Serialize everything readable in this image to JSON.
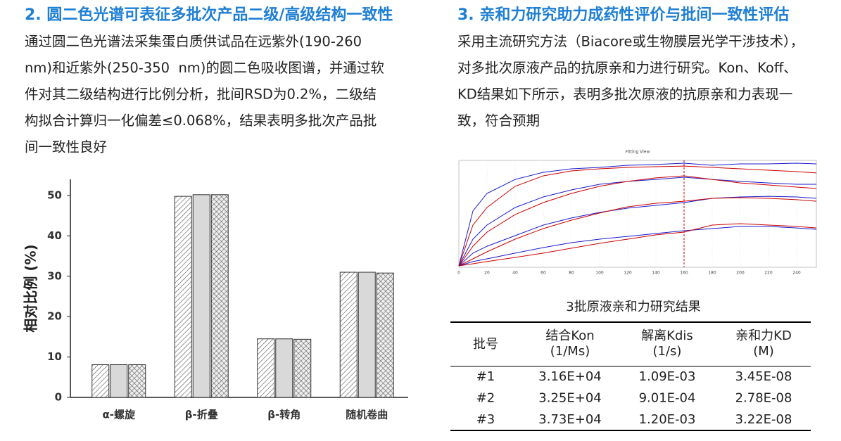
{
  "left": {
    "heading": "2. 圆二色光谱可表征多批次产品二级/高级结构一致性",
    "paragraph": [
      "通过圆二色光谱法采集蛋白质供试品在远紫外(190-260",
      "nm)和近紫外(250-350  nm)的圆二色吸收图谱，并通过软",
      "件对其二级结构进行比例分析，批间RSD为0.2%，二级结",
      "构拟合计算归一化偏差≤0.068%，结果表明多批次产品批",
      "间一致性良好"
    ]
  },
  "right": {
    "heading": "3. 亲和力研究助力成药性评价与批间一致性评估",
    "paragraph": [
      "采用主流研究方法（Biacore或生物膜层光学干涉技术），",
      "对多批次原液产品的抗原亲和力进行研究。Kon、Koff、",
      "KD结果如下所示，表明多批次原液的抗原亲和力表现一",
      "致，符合预期"
    ]
  },
  "chart_data": [
    {
      "type": "bar",
      "ylabel": "相对比例 (%)",
      "categories": [
        "α-螺旋",
        "β-折叠",
        "β-转角",
        "随机卷曲"
      ],
      "series": [
        {
          "color": "#ffffff",
          "pattern": "diagonal",
          "values": [
            8.1,
            49.8,
            14.5,
            31.0
          ]
        },
        {
          "color": "#d9d9d9",
          "values": [
            8.1,
            50.2,
            14.5,
            31.0
          ]
        },
        {
          "color": "#ffffff",
          "pattern": "crosshatch",
          "values": [
            8.1,
            50.2,
            14.4,
            30.8
          ]
        }
      ],
      "ylim": [
        0,
        54
      ],
      "yticks": [
        0,
        10,
        20,
        30,
        40,
        50
      ]
    },
    {
      "type": "line",
      "title": "Fitting View",
      "x": [
        0,
        10,
        20,
        40,
        60,
        80,
        100,
        120,
        140,
        160,
        180,
        200,
        220,
        240,
        254
      ],
      "series": [
        {
          "color": "#1a1acc",
          "values": [
            1.3,
            52.6,
            69.1,
            82.2,
            88.8,
            92.1,
            93.4,
            95.4,
            96.1,
            97.4,
            95.4,
            96.7,
            96.7,
            97.4,
            96.7
          ]
        },
        {
          "color": "#cc0000",
          "values": [
            1.3,
            39.5,
            55.9,
            75.7,
            85.5,
            90.1,
            92.1,
            93.4,
            94.1,
            94.7,
            93.4,
            92.1,
            90.8,
            89.5,
            88.2
          ]
        },
        {
          "color": "#1a1acc",
          "values": [
            1.3,
            26.3,
            39.5,
            55.9,
            65.8,
            72.4,
            77.6,
            80.3,
            82.2,
            84.2,
            82.2,
            80.3,
            78.9,
            77.6,
            77.6
          ]
        },
        {
          "color": "#cc0000",
          "values": [
            1.3,
            19.7,
            32.9,
            49.3,
            60.5,
            69.1,
            75.7,
            80.3,
            83.6,
            85.5,
            82.2,
            78.9,
            77.0,
            75.0,
            73.7
          ]
        },
        {
          "color": "#1a1acc",
          "values": [
            1.3,
            13.2,
            19.7,
            29.6,
            39.5,
            46.1,
            51.3,
            55.3,
            57.9,
            60.5,
            64.5,
            65.8,
            66.4,
            65.8,
            64.5
          ]
        },
        {
          "color": "#cc0000",
          "values": [
            1.3,
            7.9,
            14.5,
            26.3,
            36.2,
            44.1,
            50.7,
            56.6,
            59.9,
            61.8,
            64.5,
            65.1,
            64.5,
            63.2,
            61.8
          ]
        },
        {
          "color": "#1a1acc",
          "values": [
            1.3,
            5.3,
            7.9,
            13.2,
            18.4,
            23.0,
            26.3,
            28.9,
            31.6,
            34.2,
            36.2,
            38.2,
            38.2,
            36.8,
            35.5
          ]
        },
        {
          "color": "#cc0000",
          "values": [
            1.3,
            3.3,
            5.3,
            9.2,
            13.2,
            17.8,
            22.4,
            26.3,
            30.3,
            32.9,
            39.5,
            40.8,
            39.5,
            38.2,
            36.8
          ]
        }
      ],
      "vline": 160,
      "xlim": [
        0,
        254
      ],
      "ylim": [
        0,
        100
      ],
      "xticks": [
        0,
        20,
        40,
        60,
        80,
        100,
        120,
        140,
        160,
        180,
        200,
        220,
        240
      ],
      "grid": true
    }
  ],
  "table": {
    "title": "3批原液亲和力研究结果",
    "headers": [
      [
        "批号"
      ],
      [
        "结合Kon",
        "(1/Ms)"
      ],
      [
        "解离Kdis",
        "(1/s)"
      ],
      [
        "亲和力KD",
        "(M)"
      ]
    ],
    "rows": [
      [
        "#1",
        "3.16E+04",
        "1.09E-03",
        "3.45E-08"
      ],
      [
        "#2",
        "3.25E+04",
        "9.01E-04",
        "2.78E-08"
      ],
      [
        "#3",
        "3.73E+04",
        "1.20E-03",
        "3.22E-08"
      ]
    ]
  }
}
